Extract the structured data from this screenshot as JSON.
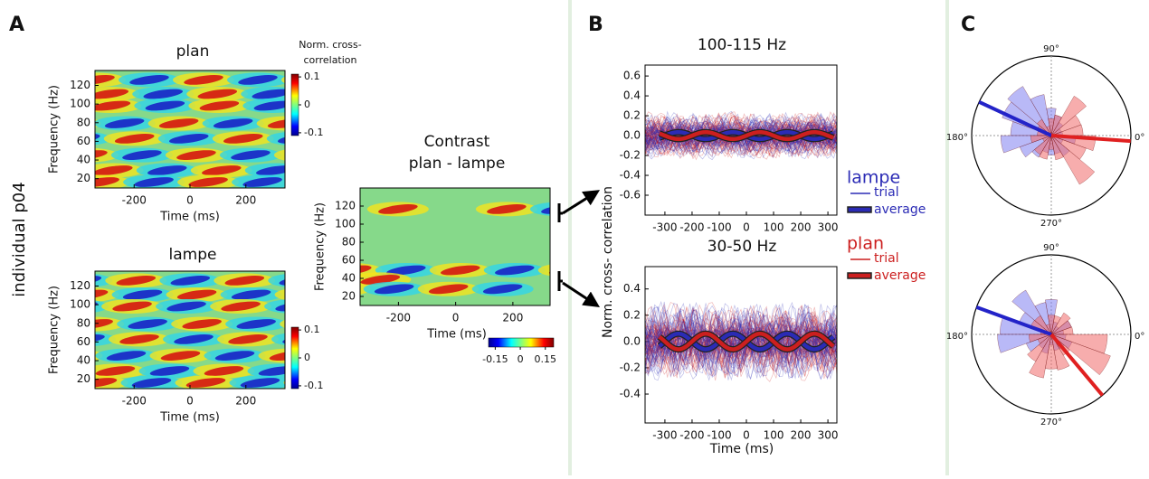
{
  "panel_labels": {
    "a": "A",
    "b": "B",
    "c": "C"
  },
  "row_label": "individual p04",
  "panel_a": {
    "colorbar_title": [
      "Norm. cross-",
      "correlation"
    ],
    "plan": {
      "title": "plan",
      "ylabel": "Frequency (Hz)",
      "xlabel": "Time (ms)",
      "xlim": [
        -340,
        340
      ],
      "ylim": [
        10,
        136
      ],
      "xticks": [
        -200,
        0,
        200
      ],
      "yticks": [
        20,
        40,
        60,
        80,
        100,
        120
      ],
      "colorbar_lim": [
        -0.11,
        0.11
      ],
      "colorbar_ticks": [
        0.1,
        0,
        -0.1
      ]
    },
    "lampe": {
      "title": "lampe",
      "ylabel": "Frequency (Hz)",
      "xlabel": "Time (ms)",
      "xlim": [
        -340,
        340
      ],
      "ylim": [
        10,
        136
      ],
      "xticks": [
        -200,
        0,
        200
      ],
      "yticks": [
        20,
        40,
        60,
        80,
        100,
        120
      ],
      "colorbar_lim": [
        -0.11,
        0.11
      ],
      "colorbar_ticks": [
        0.1,
        0,
        -0.1
      ]
    },
    "contrast": {
      "title": [
        "Contrast",
        "plan - lampe"
      ],
      "ylabel": "Frequency (Hz)",
      "xlabel": "Time (ms)",
      "xlim": [
        -334,
        330
      ],
      "ylim": [
        10,
        140
      ],
      "xticks": [
        -200,
        0,
        200
      ],
      "yticks": [
        20,
        40,
        60,
        80,
        100,
        120
      ],
      "colorbar_lim": [
        -0.19,
        0.2
      ],
      "colorbar_ticks": [
        -0.15,
        0,
        0.15
      ]
    }
  },
  "panel_b": {
    "ylabel": "Norm. cross- correlation",
    "xlabel": "Time (ms)",
    "plots": [
      {
        "title": "100-115 Hz",
        "xlim": [
          -373,
          333
        ],
        "ylim": [
          -0.8,
          0.71
        ],
        "xticks": [
          -300,
          -200,
          -100,
          0,
          100,
          200,
          300
        ],
        "yticks": [
          0.6,
          0.4,
          0.2,
          {
            "value": 0,
            "label": "0.0"
          },
          -0.2,
          -0.4,
          -0.6
        ]
      },
      {
        "title": "30-50  Hz",
        "xlim": [
          -373,
          333
        ],
        "ylim": [
          -0.62,
          0.57
        ],
        "xticks": [
          -300,
          -200,
          -100,
          0,
          100,
          200,
          300
        ],
        "yticks": [
          0.4,
          0.2,
          {
            "value": 0,
            "label": "0.0"
          },
          -0.2,
          -0.4
        ]
      }
    ],
    "legend": [
      {
        "name": "lampe",
        "color": "#2b2bb5",
        "trial": "trial",
        "average": "average"
      },
      {
        "name": "plan",
        "color": "#cc1f1f",
        "trial": "trial",
        "average": "average"
      }
    ]
  },
  "panel_c": {
    "plots": [
      {
        "angle_labels": {
          "top": "90°",
          "left": "180°",
          "right": "0°",
          "bottom": "270°"
        }
      },
      {
        "angle_labels": {
          "top": "90°",
          "left": "180°",
          "right": "0°",
          "bottom": "270°"
        }
      }
    ]
  }
}
